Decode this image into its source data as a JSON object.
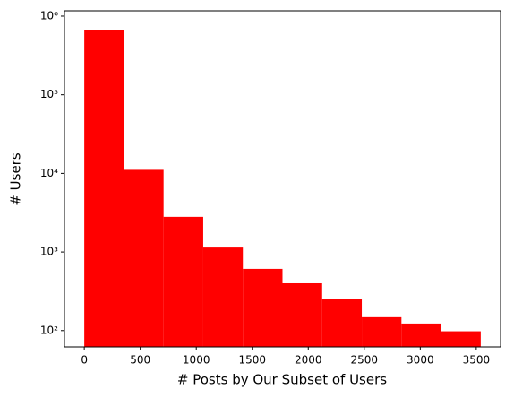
{
  "chart_data": {
    "type": "histogram",
    "x_label": "# Posts by Our Subset of Users",
    "y_label": "# Users",
    "bins": [
      0,
      354,
      708,
      1062,
      1416,
      1770,
      2124,
      2478,
      2832,
      3186,
      3540
    ],
    "values": [
      660000,
      11100,
      2800,
      1140,
      610,
      400,
      250,
      148,
      123,
      98
    ],
    "color": "#ff0000",
    "log_y": true,
    "xlim": [
      -177,
      3717
    ],
    "ylim": [
      62,
      1170000
    ],
    "xticks": [
      0,
      500,
      1000,
      1500,
      2000,
      2500,
      3000,
      3500
    ],
    "yticks": [
      {
        "value": 100,
        "label": "10²"
      },
      {
        "value": 1000,
        "label": "10³"
      },
      {
        "value": 10000,
        "label": "10⁴"
      },
      {
        "value": 100000,
        "label": "10⁵"
      },
      {
        "value": 1000000,
        "label": "10⁶"
      }
    ]
  }
}
